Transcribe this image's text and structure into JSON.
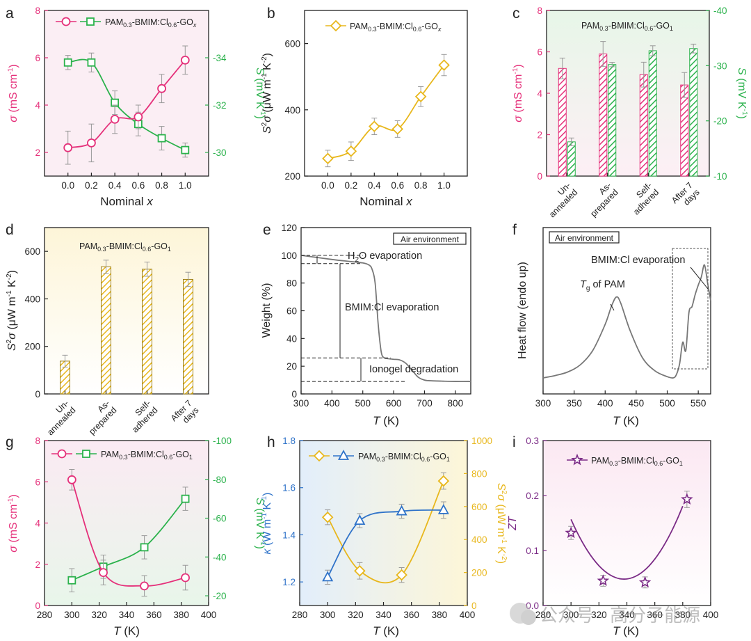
{
  "page": {
    "watermark": "公众号 · 高分子能源"
  },
  "material_label": "PAM",
  "colors": {
    "pink": "#e5307a",
    "green": "#2bb24c",
    "gold": "#e8b71c",
    "blue": "#2f73c9",
    "purple": "#7b2b86",
    "gray": "#777777",
    "pinkbg": "#fde6f0",
    "greenbg": "#e2f5e4",
    "goldbg": "#fdf7dc",
    "bluebg": "#e2eefb",
    "purplebg": "#fbecf4"
  },
  "chart_data": [
    {
      "panel": "a",
      "type": "line",
      "legend": "PAM0.3-BMIM:Cl0.6-GOx",
      "x": [
        0.0,
        0.2,
        0.4,
        0.6,
        0.8,
        1.0
      ],
      "xticks": [
        "0.0",
        "0.2",
        "0.4",
        "0.6",
        "0.8",
        "1.0"
      ],
      "xlabel": "Nominal x",
      "xlim": [
        -0.2,
        1.2
      ],
      "left_label": "σ (mS cm-1)",
      "left_ticks": [
        "2",
        "4",
        "6",
        "8"
      ],
      "ylim_left": [
        1,
        8
      ],
      "right_label": "S (mV K-1)",
      "right_ticks": [
        "-30",
        "-32",
        "-34"
      ],
      "ylim_right": [
        -29,
        -36
      ],
      "series": [
        {
          "name": "σ",
          "axis": "left",
          "values": [
            2.2,
            2.4,
            3.4,
            3.5,
            4.7,
            5.9
          ],
          "err": [
            0.7,
            0.8,
            0.6,
            0.5,
            0.6,
            0.6
          ]
        },
        {
          "name": "S",
          "axis": "right",
          "values": [
            -33.8,
            -33.8,
            -32.1,
            -31.2,
            -30.6,
            -30.1
          ],
          "err": [
            0.3,
            0.4,
            0.5,
            0.5,
            0.5,
            0.3
          ]
        }
      ]
    },
    {
      "panel": "b",
      "type": "line",
      "legend": "PAM0.3-BMIM:Cl0.6-GOx",
      "x": [
        0.0,
        0.2,
        0.4,
        0.6,
        0.8,
        1.0
      ],
      "xticks": [
        "0.0",
        "0.2",
        "0.4",
        "0.6",
        "0.8",
        "1.0"
      ],
      "xlabel": "Nominal x",
      "xlim": [
        -0.2,
        1.2
      ],
      "ylabel": "S2σ (μW m-1 K-2)",
      "yticks": [
        "200",
        "400",
        "600"
      ],
      "ylim": [
        200,
        700
      ],
      "series": [
        {
          "name": "S2σ",
          "values": [
            253,
            275,
            350,
            342,
            440,
            535
          ],
          "err": [
            25,
            28,
            25,
            25,
            30,
            32
          ]
        }
      ]
    },
    {
      "panel": "c",
      "type": "bar",
      "legend": "PAM0.3-BMIM:Cl0.6-GO1",
      "categories": [
        "Un-annealed",
        "As-prepared",
        "Self-adhered",
        "After 7 days"
      ],
      "left_label": "σ (mS cm-1)",
      "left_ticks": [
        "0",
        "2",
        "4",
        "6",
        "8"
      ],
      "ylim_left": [
        0,
        8
      ],
      "right_label": "S (mV K-1)",
      "right_ticks": [
        "-10",
        "-20",
        "-30",
        "-40"
      ],
      "ylim_right": [
        -10,
        -40
      ],
      "series": [
        {
          "name": "σ",
          "axis": "left",
          "values": [
            5.2,
            5.9,
            4.9,
            4.4
          ],
          "err": [
            0.5,
            0.6,
            0.6,
            0.6
          ]
        },
        {
          "name": "S",
          "axis": "right",
          "values": [
            -16.2,
            -30.2,
            -32.7,
            -33.1
          ],
          "err": [
            0.7,
            0.4,
            0.9,
            0.8
          ]
        }
      ]
    },
    {
      "panel": "d",
      "type": "bar",
      "legend": "PAM0.3-BMIM:Cl0.6-GO1",
      "categories": [
        "Un-annealed",
        "As-prepared",
        "Self-adhered",
        "After 7 days"
      ],
      "ylabel": "S2σ (μW m-1 K-2)",
      "yticks": [
        "0",
        "200",
        "400",
        "600"
      ],
      "ylim": [
        0,
        700
      ],
      "series": [
        {
          "name": "S2σ",
          "values": [
            138,
            535,
            525,
            482
          ],
          "err": [
            25,
            28,
            30,
            30
          ]
        }
      ]
    },
    {
      "panel": "e",
      "type": "line",
      "ylabel": "Weight (%)",
      "xlabel": "T (K)",
      "xticks": [
        "300",
        "400",
        "500",
        "600",
        "700",
        "800"
      ],
      "xlim": [
        300,
        850
      ],
      "yticks": [
        "0",
        "20",
        "40",
        "60",
        "80",
        "100",
        "120"
      ],
      "ylim": [
        0,
        120
      ],
      "annotations": [
        "Air environment",
        "H2O evaporation",
        "BMIM:Cl evaporation",
        "Ionogel degradation"
      ],
      "series": [
        {
          "name": "TGA",
          "x": [
            300,
            400,
            460,
            500,
            520,
            530,
            540,
            550,
            560,
            570,
            580,
            600,
            620,
            640,
            660,
            680,
            700,
            720,
            760,
            800,
            850
          ],
          "values": [
            100,
            97,
            95.5,
            94.5,
            93,
            90,
            80,
            50,
            30,
            26,
            25.5,
            25,
            24.5,
            22,
            17,
            12,
            10,
            9.5,
            9.2,
            9,
            9
          ]
        }
      ]
    },
    {
      "panel": "f",
      "type": "line",
      "ylabel": "Heat flow (endo up)",
      "xlabel": "T (K)",
      "xticks": [
        "300",
        "350",
        "400",
        "450",
        "500",
        "550"
      ],
      "xlim": [
        300,
        570
      ],
      "annotations": [
        "Air environment",
        "BMIM:Cl evaporation",
        "Tg of PAM"
      ],
      "series": [
        {
          "name": "DSC",
          "x": [
            300,
            320,
            340,
            360,
            380,
            400,
            410,
            418,
            425,
            440,
            460,
            480,
            500,
            510,
            515,
            520,
            525,
            530,
            535,
            540,
            545,
            550,
            555,
            560,
            565,
            570
          ],
          "values": [
            0.1,
            0.12,
            0.15,
            0.21,
            0.33,
            0.55,
            0.7,
            0.78,
            0.73,
            0.5,
            0.27,
            0.16,
            0.11,
            0.1,
            0.13,
            0.22,
            0.4,
            0.33,
            0.65,
            0.7,
            0.8,
            0.88,
            0.95,
            1.05,
            0.9,
            0.75
          ]
        }
      ]
    },
    {
      "panel": "g",
      "type": "line",
      "legend": "PAM0.3-BMIM:Cl0.6-GO1",
      "xlabel": "T (K)",
      "x": [
        300,
        323,
        353,
        383
      ],
      "xticks": [
        "280",
        "300",
        "320",
        "340",
        "360",
        "380",
        "400"
      ],
      "xlim": [
        280,
        400
      ],
      "left_label": "σ (mS cm-1)",
      "left_ticks": [
        "0",
        "2",
        "4",
        "6",
        "8"
      ],
      "ylim_left": [
        0,
        8
      ],
      "right_label": "S (mV K-1)",
      "right_ticks": [
        "-20",
        "-40",
        "-60",
        "-80",
        "-100"
      ],
      "ylim_right": [
        -15,
        -100
      ],
      "series": [
        {
          "name": "σ",
          "axis": "left",
          "values": [
            6.1,
            1.6,
            0.95,
            1.35
          ],
          "err": [
            0.5,
            0.6,
            0.5,
            0.6
          ]
        },
        {
          "name": "S",
          "axis": "right",
          "values": [
            -28,
            -35,
            -45,
            -70
          ],
          "err": [
            6,
            6,
            6,
            6
          ]
        }
      ]
    },
    {
      "panel": "h",
      "type": "line",
      "legend": "PAM0.3-BMIM:Cl0.6-GO1",
      "xlabel": "T (K)",
      "x": [
        300,
        323,
        353,
        383
      ],
      "xticks": [
        "280",
        "300",
        "320",
        "340",
        "360",
        "380",
        "400"
      ],
      "xlim": [
        280,
        400
      ],
      "left_label": "κ (W m-1 K-1)",
      "left_ticks": [
        "1.2",
        "1.4",
        "1.6",
        "1.8"
      ],
      "ylim_left": [
        1.1,
        1.8
      ],
      "right_label": "S2σ (μW m-1 K-2)",
      "right_ticks": [
        "0",
        "200",
        "400",
        "600",
        "800",
        "1000"
      ],
      "ylim_right": [
        0,
        1000
      ],
      "series": [
        {
          "name": "κ",
          "axis": "left",
          "values": [
            1.22,
            1.46,
            1.5,
            1.505
          ],
          "err": [
            0.03,
            0.03,
            0.03,
            0.035
          ]
        },
        {
          "name": "S2σ",
          "axis": "right",
          "values": [
            535,
            210,
            185,
            755
          ],
          "err": [
            45,
            50,
            45,
            50
          ]
        }
      ]
    },
    {
      "panel": "i",
      "type": "line",
      "legend": "PAM0.3-BMIM:Cl0.6-GO1",
      "xlabel": "T (K)",
      "x": [
        300,
        323,
        353,
        383
      ],
      "xticks": [
        "280",
        "300",
        "320",
        "340",
        "360",
        "380",
        "400"
      ],
      "xlim": [
        280,
        400
      ],
      "ylabel": "ZT",
      "yticks": [
        "0.0",
        "0.1",
        "0.2",
        "0.3"
      ],
      "ylim": [
        0,
        0.3
      ],
      "series": [
        {
          "name": "ZT",
          "values": [
            0.132,
            0.045,
            0.042,
            0.193
          ],
          "err": [
            0.012,
            0.01,
            0.01,
            0.015
          ]
        }
      ]
    }
  ]
}
